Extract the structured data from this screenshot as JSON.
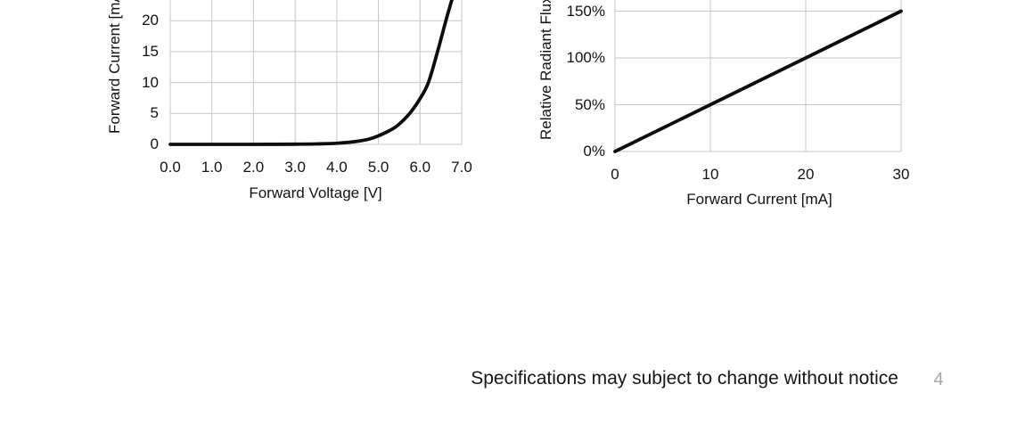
{
  "colors": {
    "grid": "#c6c6c6",
    "series": "#0d0d0d",
    "text": "#111111",
    "page_number": "#a6a6a6"
  },
  "footer": {
    "note": "Specifications may subject to change without notice",
    "page_number": "4"
  },
  "chart_data": [
    {
      "id": "forward-current-vs-voltage",
      "type": "line",
      "title": "",
      "xlabel": "Forward Voltage [V]",
      "ylabel": "Forward Current [mA]",
      "xlim": [
        0,
        7
      ],
      "ylim_visible": [
        0,
        23.3
      ],
      "grid": true,
      "legend": "none",
      "crop_note": "top of plot cut off by screenshot edge",
      "x_ticks": {
        "values": [
          0,
          1,
          2,
          3,
          4,
          5,
          6,
          7
        ],
        "labels": [
          "0.0",
          "1.0",
          "2.0",
          "3.0",
          "4.0",
          "5.0",
          "6.0",
          "7.0"
        ]
      },
      "y_ticks": {
        "values": [
          0,
          5,
          10,
          15,
          20
        ],
        "labels": [
          "0",
          "5",
          "10",
          "15",
          "20"
        ]
      },
      "series": [
        {
          "name": "forward current",
          "points": [
            [
              0,
              0
            ],
            [
              1,
              0
            ],
            [
              2,
              0
            ],
            [
              2.5,
              0.01
            ],
            [
              3,
              0.03
            ],
            [
              3.5,
              0.07
            ],
            [
              4,
              0.18
            ],
            [
              4.5,
              0.5
            ],
            [
              4.85,
              1
            ],
            [
              5.2,
              2
            ],
            [
              5.45,
              3
            ],
            [
              5.75,
              5
            ],
            [
              6.0,
              7.4
            ],
            [
              6.2,
              10
            ],
            [
              6.42,
              15
            ],
            [
              6.62,
              20
            ],
            [
              6.8,
              24.2
            ]
          ]
        }
      ]
    },
    {
      "id": "relative-radiant-flux-vs-current",
      "type": "line",
      "title": "",
      "xlabel": "Forward Current [mA]",
      "ylabel": "Relative Radiant Flux",
      "xlim": [
        0,
        30
      ],
      "ylim_visible": [
        0,
        157
      ],
      "grid": true,
      "legend": "none",
      "crop_note": "top of plot cut off by screenshot edge",
      "x_ticks": {
        "values": [
          0,
          10,
          20,
          30
        ],
        "labels": [
          "0",
          "10",
          "20",
          "30"
        ]
      },
      "y_ticks": {
        "values": [
          0,
          50,
          100,
          150
        ],
        "labels": [
          "0%",
          "50%",
          "100%",
          "150%"
        ]
      },
      "series": [
        {
          "name": "relative radiant flux",
          "points": [
            [
              0,
              0
            ],
            [
              5,
              25
            ],
            [
              10,
              50
            ],
            [
              15,
              75
            ],
            [
              20,
              100
            ],
            [
              25,
              125
            ],
            [
              30,
              150
            ]
          ]
        }
      ]
    }
  ]
}
